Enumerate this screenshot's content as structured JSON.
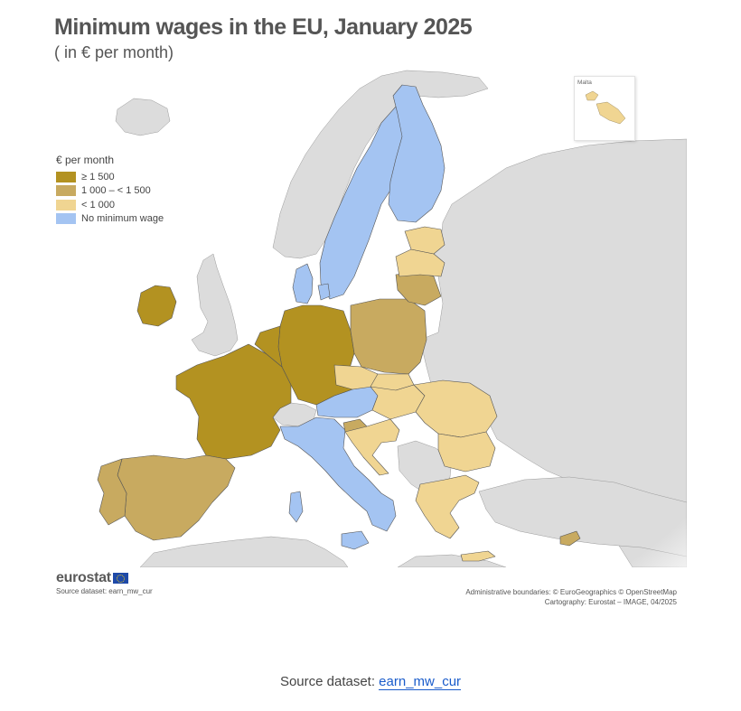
{
  "title": "Minimum wages in the EU, January 2025",
  "subtitle": "( in € per month)",
  "legend": {
    "title": "€ per month",
    "items": [
      {
        "label": "≥ 1 500",
        "color": "#b39221"
      },
      {
        "label": "1 000 – < 1 500",
        "color": "#c8aa60"
      },
      {
        "label": "< 1 000",
        "color": "#f0d592"
      },
      {
        "label": "No minimum wage",
        "color": "#a4c4f2"
      }
    ]
  },
  "map": {
    "background_color": "#ffffff",
    "non_eu_color": "#dcdcdc",
    "border_color": "#555555",
    "inset_label": "Malta",
    "countries": [
      {
        "name": "Ireland",
        "category": "≥ 1 500"
      },
      {
        "name": "France",
        "category": "≥ 1 500"
      },
      {
        "name": "Germany",
        "category": "≥ 1 500"
      },
      {
        "name": "Belgium",
        "category": "≥ 1 500"
      },
      {
        "name": "Netherlands",
        "category": "≥ 1 500"
      },
      {
        "name": "Luxembourg",
        "category": "≥ 1 500"
      },
      {
        "name": "Spain",
        "category": "1 000 – < 1 500"
      },
      {
        "name": "Portugal",
        "category": "1 000 – < 1 500"
      },
      {
        "name": "Poland",
        "category": "1 000 – < 1 500"
      },
      {
        "name": "Lithuania",
        "category": "1 000 – < 1 500"
      },
      {
        "name": "Slovenia",
        "category": "1 000 – < 1 500"
      },
      {
        "name": "Cyprus",
        "category": "1 000 – < 1 500"
      },
      {
        "name": "Latvia",
        "category": "< 1 000"
      },
      {
        "name": "Estonia",
        "category": "< 1 000"
      },
      {
        "name": "Czechia",
        "category": "< 1 000"
      },
      {
        "name": "Slovakia",
        "category": "< 1 000"
      },
      {
        "name": "Hungary",
        "category": "< 1 000"
      },
      {
        "name": "Romania",
        "category": "< 1 000"
      },
      {
        "name": "Bulgaria",
        "category": "< 1 000"
      },
      {
        "name": "Croatia",
        "category": "< 1 000"
      },
      {
        "name": "Greece",
        "category": "< 1 000"
      },
      {
        "name": "Malta",
        "category": "< 1 000"
      },
      {
        "name": "Denmark",
        "category": "No minimum wage"
      },
      {
        "name": "Sweden",
        "category": "No minimum wage"
      },
      {
        "name": "Finland",
        "category": "No minimum wage"
      },
      {
        "name": "Austria",
        "category": "No minimum wage"
      },
      {
        "name": "Italy",
        "category": "No minimum wage"
      }
    ]
  },
  "footer": {
    "logo_text": "eurostat",
    "source_small": "Source dataset: earn_mw_cur",
    "credits_line1": "Administrative boundaries: © EuroGeographics © OpenStreetMap",
    "credits_line2": "Cartography: Eurostat – IMAGE, 04/2025",
    "source_prefix": "Source dataset: ",
    "source_link": "earn_mw_cur"
  }
}
